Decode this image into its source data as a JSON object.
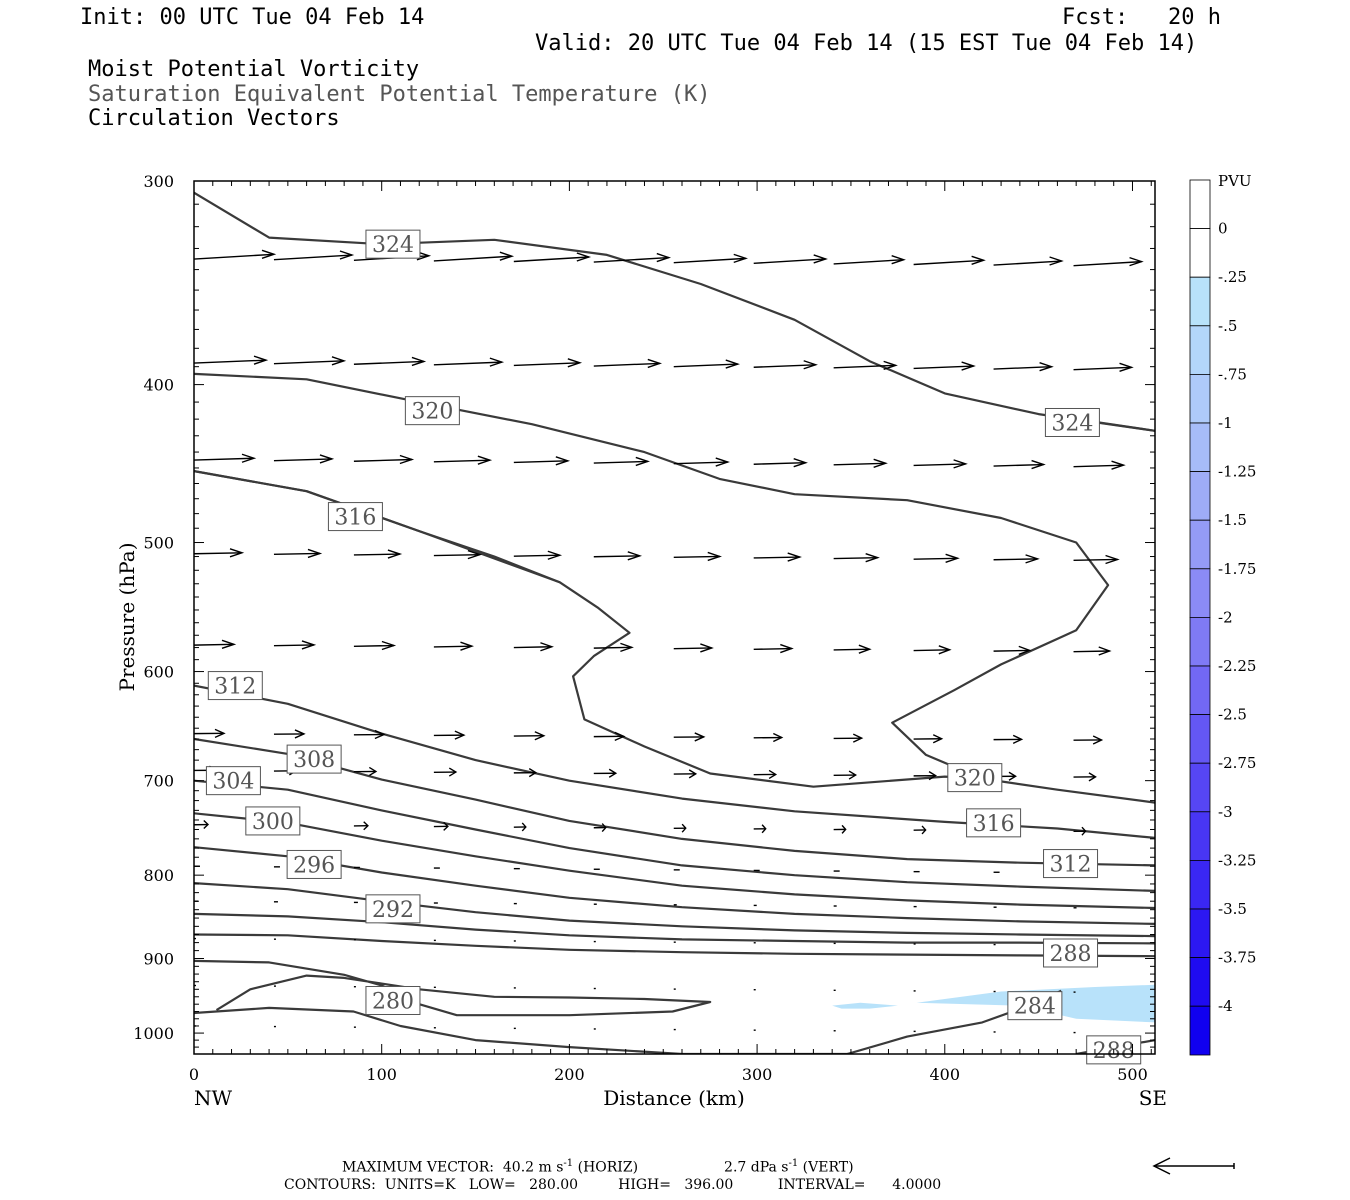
{
  "header": {
    "init": "Init: 00 UTC Tue 04 Feb 14",
    "fcst": "Fcst:   20 h",
    "valid": "Valid: 20 UTC Tue 04 Feb 14 (15 EST Tue 04 Feb 14)",
    "field1": "Moist Potential Vorticity",
    "field2": "Saturation Equivalent Potential Temperature (K)",
    "field3": "Circulation Vectors"
  },
  "footer": {
    "max_vector_prefix": "MAXIMUM VECTOR:  40.2 m s",
    "max_vector_horiz_suffix": " (HORIZ)",
    "max_vector_vert_value": "2.7 dPa s",
    "max_vector_vert_suffix": " (VERT)",
    "exponent": "-1",
    "contours": "CONTOURS:  UNITS=K   LOW=   280.00         HIGH=   396.00          INTERVAL=      4.0000"
  },
  "colors": {
    "contour": "#3a3a3a",
    "vector": "#000000",
    "pv_shade": "#b8e2fa"
  },
  "chart_data": {
    "type": "contour",
    "xlabel": "Distance (km)",
    "ylabel": "Pressure (hPa)",
    "x_left_label": "NW",
    "x_right_label": "SE",
    "xlim": [
      0,
      512
    ],
    "ylim": [
      1030,
      300
    ],
    "yscale": "log",
    "xticks": [
      0,
      100,
      200,
      300,
      400,
      500
    ],
    "yticks": [
      300,
      400,
      500,
      600,
      700,
      800,
      900,
      1000
    ],
    "colorbar": {
      "title": "PVU",
      "levels": [
        "0",
        "-.25",
        "-.5",
        "-.75",
        "-1",
        "-1.25",
        "-1.5",
        "-1.75",
        "-2",
        "-2.25",
        "-2.5",
        "-2.75",
        "-3",
        "-3.25",
        "-3.5",
        "-3.75",
        "-4"
      ],
      "colors": [
        "#ffffff",
        "#ffffff",
        "#b8e2fa",
        "#b3d6fa",
        "#aecaf9",
        "#a6bcf8",
        "#9eacf7",
        "#949bf6",
        "#8b8bf6",
        "#7f7af5",
        "#7268f5",
        "#6457f4",
        "#5646f4",
        "#4836f3",
        "#3a27f3",
        "#2c18f2",
        "#1f0bf1",
        "#1000f0"
      ]
    },
    "contours": [
      {
        "label": "324",
        "label_at": [
          106,
          328
        ],
        "points": [
          [
            0,
            305
          ],
          [
            40,
            325
          ],
          [
            100,
            328
          ],
          [
            160,
            326
          ],
          [
            220,
            333
          ],
          [
            270,
            347
          ],
          [
            320,
            365
          ],
          [
            360,
            387
          ],
          [
            400,
            405
          ],
          [
            450,
            417
          ],
          [
            512,
            427
          ]
        ]
      },
      {
        "label": "324",
        "label_at": [
          468,
          422
        ],
        "points": [
          [
            512,
            427
          ],
          [
            470,
            420
          ]
        ]
      },
      {
        "label": "320",
        "label_at": [
          127,
          415
        ],
        "points": [
          [
            0,
            394
          ],
          [
            60,
            397
          ],
          [
            120,
            410
          ],
          [
            180,
            423
          ],
          [
            240,
            440
          ],
          [
            280,
            457
          ],
          [
            320,
            467
          ],
          [
            380,
            471
          ],
          [
            430,
            483
          ],
          [
            470,
            500
          ],
          [
            487,
            531
          ],
          [
            470,
            566
          ],
          [
            430,
            594
          ],
          [
            405,
            616
          ],
          [
            372,
            645
          ],
          [
            390,
            675
          ],
          [
            420,
            698
          ],
          [
            460,
            709
          ],
          [
            512,
            722
          ]
        ]
      },
      {
        "label": "320",
        "label_at": [
          416,
          697
        ],
        "points": [
          [
            0,
            452
          ],
          [
            60,
            465
          ],
          [
            120,
            492
          ],
          [
            160,
            510
          ],
          [
            195,
            529
          ],
          [
            215,
            548
          ],
          [
            232,
            568
          ],
          [
            213,
            587
          ],
          [
            202,
            604
          ],
          [
            208,
            642
          ],
          [
            240,
            667
          ],
          [
            275,
            693
          ],
          [
            330,
            706
          ],
          [
            400,
            696
          ],
          [
            420,
            698
          ]
        ]
      },
      {
        "label": "316",
        "label_at": [
          86,
          482
        ],
        "points": [
          [
            0,
            452
          ],
          [
            60,
            465
          ],
          [
            120,
            492
          ],
          [
            195,
            529
          ]
        ]
      },
      {
        "label": "316",
        "label_at": [
          426,
          743
        ],
        "points": [
          [
            0,
            612
          ],
          [
            50,
            628
          ],
          [
            100,
            655
          ],
          [
            150,
            680
          ],
          [
            200,
            700
          ],
          [
            260,
            718
          ],
          [
            320,
            731
          ],
          [
            400,
            742
          ],
          [
            460,
            749
          ],
          [
            512,
            759
          ]
        ]
      },
      {
        "label": "312",
        "label_at": [
          22,
          612
        ],
        "points": [
          [
            0,
            660
          ],
          [
            50,
            674
          ],
          [
            100,
            699
          ],
          [
            150,
            719
          ],
          [
            200,
            741
          ],
          [
            260,
            760
          ],
          [
            320,
            773
          ],
          [
            380,
            782
          ],
          [
            440,
            786
          ],
          [
            512,
            789
          ]
        ]
      },
      {
        "label": "312",
        "label_at": [
          467,
          787
        ],
        "points": [
          [
            467,
            787
          ]
        ]
      },
      {
        "label": "308",
        "label_at": [
          64,
          679
        ],
        "points": [
          [
            0,
            700
          ],
          [
            50,
            709
          ],
          [
            100,
            730
          ],
          [
            150,
            750
          ],
          [
            200,
            770
          ],
          [
            260,
            789
          ],
          [
            320,
            800
          ],
          [
            380,
            808
          ],
          [
            440,
            813
          ],
          [
            512,
            818
          ]
        ]
      },
      {
        "label": "304",
        "label_at": [
          21,
          700
        ],
        "points": [
          [
            0,
            733
          ],
          [
            50,
            743
          ],
          [
            100,
            762
          ],
          [
            150,
            779
          ],
          [
            200,
            795
          ],
          [
            260,
            812
          ],
          [
            320,
            822
          ],
          [
            380,
            829
          ],
          [
            440,
            834
          ],
          [
            512,
            838
          ]
        ]
      },
      {
        "label": "300",
        "label_at": [
          42,
          741
        ],
        "points": [
          [
            0,
            769
          ],
          [
            50,
            779
          ],
          [
            100,
            797
          ],
          [
            150,
            812
          ],
          [
            200,
            826
          ],
          [
            260,
            837
          ],
          [
            320,
            845
          ],
          [
            380,
            850
          ],
          [
            440,
            854
          ],
          [
            512,
            857
          ]
        ]
      },
      {
        "label": "296",
        "label_at": [
          64,
          788
        ],
        "points": [
          [
            0,
            809
          ],
          [
            50,
            816
          ],
          [
            100,
            830
          ],
          [
            150,
            843
          ],
          [
            200,
            853
          ],
          [
            260,
            860
          ],
          [
            320,
            865
          ],
          [
            380,
            868
          ],
          [
            440,
            870
          ],
          [
            512,
            872
          ]
        ]
      },
      {
        "label": "292",
        "label_at": [
          106,
          839
        ],
        "points": [
          [
            0,
            845
          ],
          [
            50,
            848
          ],
          [
            100,
            855
          ],
          [
            150,
            864
          ],
          [
            200,
            871
          ],
          [
            260,
            876
          ],
          [
            320,
            878
          ],
          [
            380,
            880
          ],
          [
            440,
            880
          ],
          [
            512,
            881
          ]
        ]
      },
      {
        "label": "288",
        "label_at": [
          467,
          893
        ],
        "points": [
          [
            0,
            870
          ],
          [
            50,
            871
          ],
          [
            100,
            878
          ],
          [
            150,
            884
          ],
          [
            200,
            889
          ],
          [
            260,
            892
          ],
          [
            320,
            894
          ],
          [
            380,
            895
          ],
          [
            440,
            896
          ],
          [
            512,
            897
          ]
        ]
      },
      {
        "label": "280",
        "label_at": [
          106,
          955
        ],
        "points": [
          [
            12,
            968
          ],
          [
            30,
            940
          ],
          [
            60,
            922
          ],
          [
            80,
            925
          ],
          [
            120,
            940
          ],
          [
            160,
            950
          ],
          [
            200,
            951
          ],
          [
            240,
            953
          ],
          [
            275,
            957
          ],
          [
            255,
            970
          ],
          [
            200,
            975
          ],
          [
            140,
            975
          ],
          [
            120,
            960
          ],
          [
            100,
            935
          ],
          [
            80,
            921
          ],
          [
            40,
            905
          ],
          [
            0,
            903
          ]
        ]
      },
      {
        "label": "284",
        "label_at": [
          448,
          962
        ],
        "points": [
          [
            0,
            972
          ],
          [
            40,
            965
          ],
          [
            85,
            970
          ],
          [
            110,
            990
          ],
          [
            150,
            1010
          ],
          [
            200,
            1020
          ],
          [
            260,
            1030
          ],
          [
            350,
            1030
          ]
        ]
      },
      {
        "label": "288",
        "label_at": [
          490,
          1024
        ],
        "points": [
          [
            348,
            1030
          ],
          [
            380,
            1005
          ],
          [
            420,
            985
          ],
          [
            447,
            960
          ],
          [
            462,
            942
          ]
        ]
      },
      {
        "label": "",
        "label_at": null,
        "points": [
          [
            470,
            1030
          ],
          [
            512,
            1010
          ]
        ]
      }
    ]
  }
}
